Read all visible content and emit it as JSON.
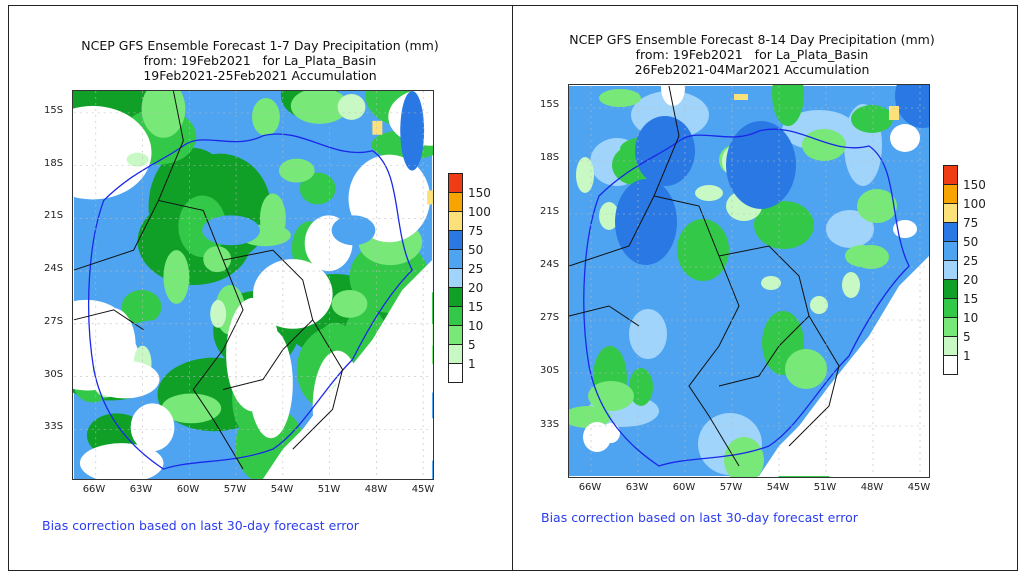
{
  "panels": [
    {
      "title": [
        "NCEP GFS Ensemble Forecast 1-7 Day Precipitation (mm)",
        "from: 19Feb2021   for La_Plata_Basin",
        "19Feb2021-25Feb2021 Accumulation"
      ],
      "note": "Bias correction based on last 30-day forecast error"
    },
    {
      "title": [
        "NCEP GFS Ensemble Forecast 8-14 Day Precipitation (mm)",
        "from: 19Feb2021   for La_Plata_Basin",
        "26Feb2021-04Mar2021 Accumulation"
      ],
      "note": "Bias correction based on last 30-day forecast error"
    }
  ],
  "lat_labels": [
    "15S",
    "18S",
    "21S",
    "24S",
    "27S",
    "30S",
    "33S"
  ],
  "lon_labels": [
    "66W",
    "63W",
    "60W",
    "57W",
    "54W",
    "51W",
    "48W",
    "45W"
  ],
  "legend": {
    "labels": [
      "150",
      "100",
      "75",
      "50",
      "25",
      "20",
      "15",
      "10",
      "5",
      "1"
    ],
    "colors": [
      "#f03c14",
      "#f8a400",
      "#fce07a",
      "#2a78e4",
      "#4ea4f0",
      "#a0d4fa",
      "#10a028",
      "#34c848",
      "#78e878",
      "#c8f8c4",
      "#ffffff"
    ]
  }
}
